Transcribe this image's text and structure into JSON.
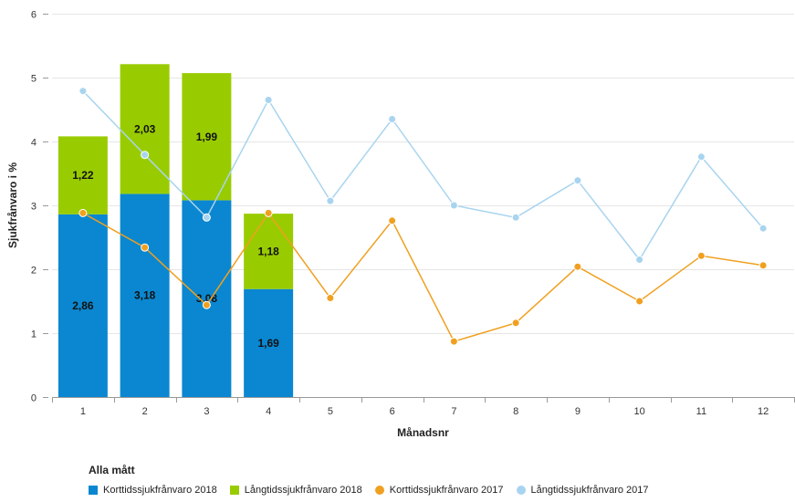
{
  "chart_data": {
    "type": "bar",
    "title": "",
    "xlabel": "Månadsnr",
    "ylabel": "Sjukfrånvaro i %",
    "ylim": [
      0,
      6
    ],
    "yticks": [
      "0",
      "1",
      "2",
      "3",
      "4",
      "5",
      "6"
    ],
    "categories": [
      "1",
      "2",
      "3",
      "4",
      "5",
      "6",
      "7",
      "8",
      "9",
      "10",
      "11",
      "12"
    ],
    "grid": true,
    "legend_title": "Alla mått",
    "legend_position": "bottom",
    "bar_series": [
      {
        "name": "Korttidssjukfrånvaro 2018",
        "color": "#0a87d0",
        "values": [
          2.86,
          3.18,
          3.08,
          1.69
        ],
        "labels": [
          "2,86",
          "3,18",
          "3,08",
          "1,69"
        ]
      },
      {
        "name": "Långtidssjukfrånvaro 2018",
        "color": "#99cc00",
        "values": [
          1.22,
          2.03,
          1.99,
          1.18
        ],
        "labels": [
          "1,22",
          "2,03",
          "1,99",
          "1,18"
        ]
      }
    ],
    "line_series": [
      {
        "name": "Korttidssjukfrånvaro 2017",
        "color": "#f0a020",
        "values": [
          2.88,
          2.34,
          1.44,
          2.88,
          1.55,
          2.76,
          0.87,
          1.16,
          2.04,
          1.5,
          2.21,
          2.06
        ]
      },
      {
        "name": "Långtidssjukfrånvaro 2017",
        "color": "#a8d4ef",
        "values": [
          4.79,
          3.79,
          2.81,
          4.65,
          3.07,
          4.35,
          3.0,
          2.81,
          3.39,
          2.15,
          3.76,
          2.64
        ]
      }
    ]
  }
}
